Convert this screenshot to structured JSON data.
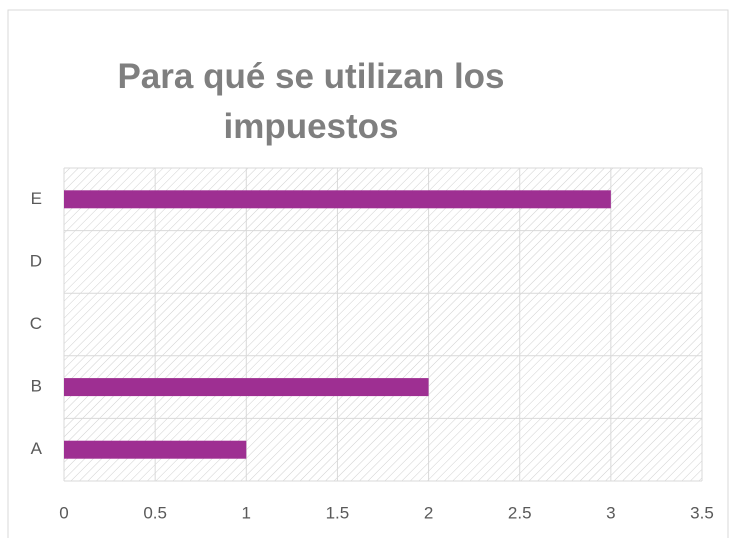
{
  "chart_data": {
    "type": "bar",
    "orientation": "horizontal",
    "title": "Para qué se utilizan los impuestos",
    "categories": [
      "A",
      "B",
      "C",
      "D",
      "E"
    ],
    "values": [
      1,
      2,
      0,
      0,
      3
    ],
    "color": "#9e2f92",
    "xlim": [
      0,
      3.5
    ],
    "xticks": [
      0,
      0.5,
      1,
      1.5,
      2,
      2.5,
      3,
      3.5
    ],
    "grid": true
  }
}
